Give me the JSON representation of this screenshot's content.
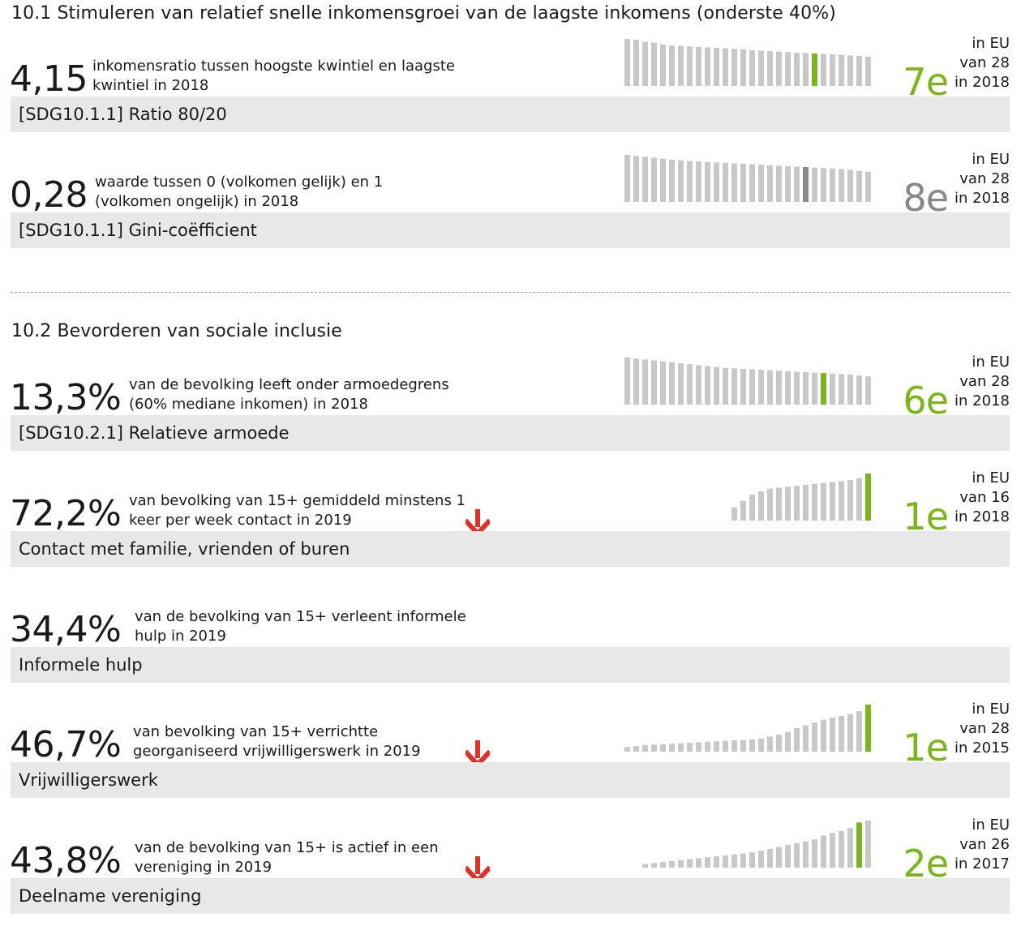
{
  "sections": [
    {
      "title": "10.1 Stimuleren van relatief snelle inkomensgroei van de laagste inkomens (onderste 40%)"
    },
    {
      "title": "10.2 Bevorderen van sociale inclusie"
    }
  ],
  "indicators": [
    {
      "value": "4,15",
      "desc_line1": "inkomensratio tussen hoogste kwintiel en laagste",
      "desc_line2": "kwintiel in 2018",
      "label": "[SDG10.1.1] Ratio 80/20",
      "arrow": false,
      "rank": "7e",
      "rank_line1": "in EU",
      "rank_line2": "van 28",
      "rank_line3": "in 2018",
      "rank_color": "#7ab51d"
    },
    {
      "value": "0,28",
      "desc_line1": "waarde tussen 0 (volkomen gelijk) en 1",
      "desc_line2": "(volkomen ongelijk) in 2018",
      "label": "[SDG10.1.1] Gini-coëfficient",
      "arrow": false,
      "rank": "8e",
      "rank_line1": "in EU",
      "rank_line2": "van 28",
      "rank_line3": "in 2018",
      "rank_color": "#888888"
    },
    {
      "value": "13,3%",
      "desc_line1": "van de bevolking leeft onder armoedegrens",
      "desc_line2": "(60% mediane inkomen) in 2018",
      "label": "[SDG10.2.1] Relatieve armoede",
      "arrow": false,
      "rank": "6e",
      "rank_line1": "in EU",
      "rank_line2": "van 28",
      "rank_line3": "in 2018",
      "rank_color": "#7ab51d"
    },
    {
      "value": "72,2%",
      "desc_line1": "van bevolking van 15+ gemiddeld minstens 1",
      "desc_line2": "keer per week contact in 2019",
      "label": "Contact met familie, vrienden of buren",
      "arrow": true,
      "rank": "1e",
      "rank_line1": "in EU",
      "rank_line2": "van 16",
      "rank_line3": "in 2018",
      "rank_color": "#7ab51d"
    },
    {
      "value": "34,4%",
      "desc_line1": "van de bevolking van 15+ verleent informele",
      "desc_line2": "hulp in 2019",
      "label": "Informele hulp",
      "arrow": false,
      "rank": "",
      "rank_line1": "",
      "rank_line2": "",
      "rank_line3": "",
      "rank_color": "#7ab51d"
    },
    {
      "value": "46,7%",
      "desc_line1": "van bevolking van 15+ verrichtte",
      "desc_line2": "georganiseerd vrijwilligerswerk in 2019",
      "label": "Vrijwilligerswerk",
      "arrow": true,
      "rank": "1e",
      "rank_line1": "in EU",
      "rank_line2": "van 28",
      "rank_line3": "in 2015",
      "rank_color": "#7ab51d"
    },
    {
      "value": "43,8%",
      "desc_line1": "van de bevolking van 15+ is actief in een",
      "desc_line2": "vereniging in 2019",
      "label": "Deelname vereniging",
      "arrow": true,
      "rank": "2e",
      "rank_line1": "in EU",
      "rank_line2": "van 26",
      "rank_line3": "in 2017",
      "rank_color": "#7ab51d"
    }
  ],
  "colors": {
    "bar": "#c8c8c8",
    "highlight_green": "#7ab51d",
    "highlight_gray": "#8a8a8a",
    "arrow": "#e03127",
    "label_bg": "#e8e8e8"
  },
  "chart_data": [
    {
      "type": "bar",
      "values": [
        1.0,
        0.98,
        0.94,
        0.92,
        0.88,
        0.86,
        0.85,
        0.84,
        0.83,
        0.82,
        0.81,
        0.8,
        0.79,
        0.78,
        0.76,
        0.75,
        0.74,
        0.73,
        0.72,
        0.71,
        0.7,
        0.69,
        0.68,
        0.67,
        0.66,
        0.65,
        0.64,
        0.62
      ],
      "highlight_index": 21,
      "highlight_color": "green"
    },
    {
      "type": "bar",
      "values": [
        1.0,
        0.98,
        0.96,
        0.94,
        0.92,
        0.9,
        0.88,
        0.87,
        0.86,
        0.85,
        0.84,
        0.83,
        0.82,
        0.81,
        0.8,
        0.79,
        0.78,
        0.77,
        0.76,
        0.75,
        0.74,
        0.73,
        0.72,
        0.71,
        0.7,
        0.68,
        0.66,
        0.64
      ],
      "highlight_index": 20,
      "highlight_color": "gray"
    },
    {
      "type": "bar",
      "values": [
        1.0,
        0.98,
        0.96,
        0.94,
        0.92,
        0.9,
        0.88,
        0.86,
        0.84,
        0.82,
        0.8,
        0.78,
        0.77,
        0.76,
        0.75,
        0.74,
        0.73,
        0.72,
        0.71,
        0.7,
        0.69,
        0.68,
        0.67,
        0.66,
        0.65,
        0.64,
        0.62,
        0.6
      ],
      "highlight_index": 22,
      "highlight_color": "green"
    },
    {
      "type": "bar",
      "values": [
        0.28,
        0.42,
        0.55,
        0.62,
        0.68,
        0.7,
        0.72,
        0.74,
        0.76,
        0.78,
        0.8,
        0.82,
        0.84,
        0.86,
        0.9,
        1.0
      ],
      "highlight_index": 15,
      "highlight_color": "green"
    },
    {
      "type": "bar",
      "values": [
        0.1,
        0.12,
        0.14,
        0.15,
        0.16,
        0.17,
        0.18,
        0.19,
        0.2,
        0.21,
        0.22,
        0.23,
        0.24,
        0.25,
        0.26,
        0.28,
        0.32,
        0.36,
        0.42,
        0.5,
        0.56,
        0.62,
        0.68,
        0.72,
        0.76,
        0.8,
        0.86,
        1.0
      ],
      "highlight_index": 27,
      "highlight_color": "green"
    },
    {
      "type": "bar",
      "values": [
        0.08,
        0.1,
        0.12,
        0.14,
        0.16,
        0.18,
        0.2,
        0.22,
        0.24,
        0.26,
        0.28,
        0.3,
        0.33,
        0.36,
        0.4,
        0.44,
        0.48,
        0.52,
        0.56,
        0.6,
        0.68,
        0.74,
        0.78,
        0.84,
        0.96,
        1.0
      ],
      "highlight_index": 24,
      "highlight_color": "green"
    }
  ]
}
